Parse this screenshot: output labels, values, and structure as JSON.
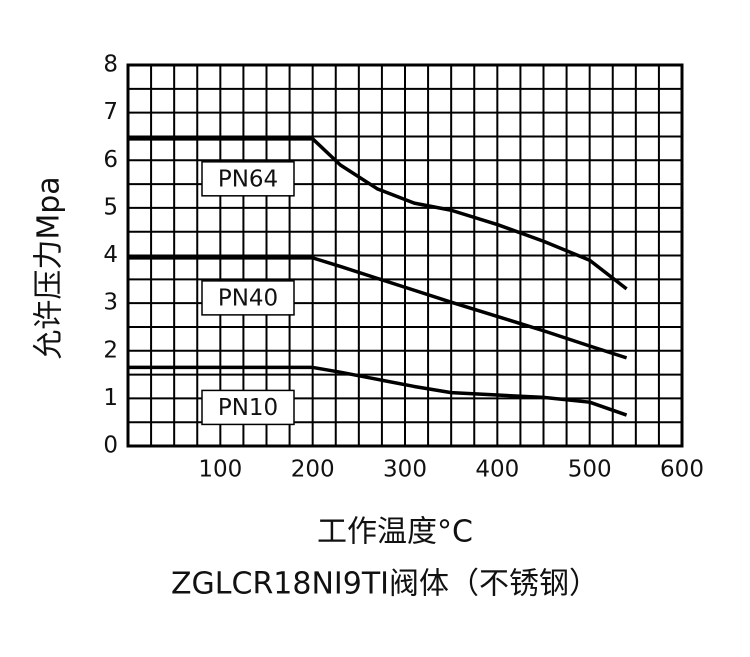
{
  "chart_data": {
    "type": "line",
    "y_label": "允许压力Mpa",
    "x_label": "工作温度°C",
    "caption": "ZGLCR18NI9TI阀体（不锈钢）",
    "x": [
      0,
      200,
      230,
      270,
      310,
      350,
      400,
      450,
      500,
      540
    ],
    "series": [
      {
        "name": "PN64",
        "color": "#000000",
        "values": [
          6.45,
          6.45,
          5.9,
          5.4,
          5.1,
          4.95,
          4.65,
          4.3,
          3.9,
          3.3
        ]
      },
      {
        "name": "PN40",
        "color": "#000000",
        "values": [
          3.95,
          3.95,
          3.77,
          3.52,
          3.27,
          3.02,
          2.72,
          2.42,
          2.1,
          1.85
        ]
      },
      {
        "name": "PN10",
        "color": "#000000",
        "values": [
          1.65,
          1.65,
          1.55,
          1.4,
          1.25,
          1.12,
          1.07,
          1.02,
          0.92,
          0.65
        ]
      }
    ],
    "xlim": [
      0,
      600
    ],
    "ylim": [
      0,
      8
    ],
    "xticks": [
      100,
      200,
      300,
      400,
      500,
      600
    ],
    "yticks": [
      0,
      1,
      2,
      3,
      4,
      5,
      6,
      7,
      8
    ],
    "xgrid": [
      0,
      25,
      50,
      75,
      100,
      125,
      150,
      175,
      200,
      225,
      250,
      275,
      300,
      325,
      350,
      375,
      400,
      425,
      450,
      475,
      500,
      525,
      550,
      575,
      600
    ],
    "ygrid": [
      0,
      0.5,
      1,
      1.5,
      2,
      2.5,
      3,
      3.5,
      4,
      4.5,
      5,
      5.5,
      6,
      6.5,
      7,
      7.5,
      8
    ],
    "grid": true
  }
}
